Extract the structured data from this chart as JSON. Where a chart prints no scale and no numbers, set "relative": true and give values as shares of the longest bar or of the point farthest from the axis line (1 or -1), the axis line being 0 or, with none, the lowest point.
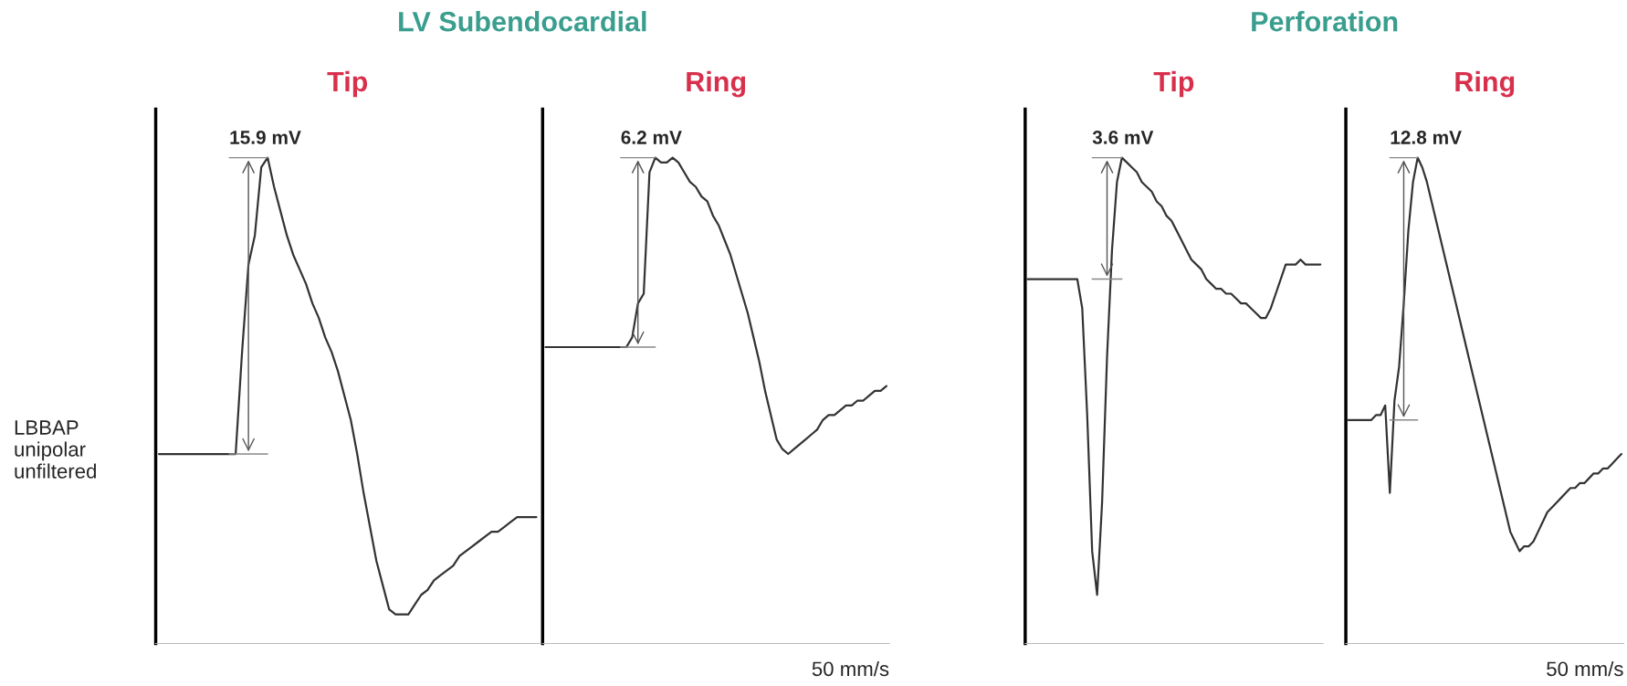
{
  "chart_data": [
    {
      "type": "line",
      "relative": true,
      "title": "LV Subendocardial",
      "subtitle": "Tip",
      "ylabel": "LBBAP unipolar unfiltered",
      "annotations": [
        "15.9 mV"
      ],
      "tick_labels": false,
      "categories": [
        null,
        null,
        null,
        null,
        null,
        null,
        null,
        null,
        null,
        null,
        null,
        null,
        null,
        null,
        null,
        null,
        null,
        null,
        null,
        null,
        null,
        null,
        null,
        null,
        null,
        null,
        null,
        null,
        null,
        null,
        null,
        null,
        null,
        null,
        null,
        null,
        null,
        null,
        null,
        null,
        null,
        null,
        null,
        null,
        null,
        null,
        null,
        null,
        null,
        null,
        null,
        null,
        null,
        null,
        null,
        null,
        null,
        null,
        null,
        null
      ],
      "series": [
        {
          "color": "#333333",
          "values": [
            0.39,
            0.39,
            0.39,
            0.39,
            0.39,
            0.39,
            0.39,
            0.39,
            0.39,
            0.39,
            0.39,
            0.39,
            0.39,
            0.6,
            0.78,
            0.84,
            0.98,
            1.0,
            0.94,
            0.89,
            0.84,
            0.8,
            0.77,
            0.74,
            0.7,
            0.67,
            0.63,
            0.6,
            0.56,
            0.51,
            0.46,
            0.39,
            0.31,
            0.24,
            0.17,
            0.12,
            0.07,
            0.06,
            0.06,
            0.06,
            0.08,
            0.1,
            0.11,
            0.13,
            0.14,
            0.15,
            0.16,
            0.18,
            0.19,
            0.2,
            0.21,
            0.22,
            0.23,
            0.23,
            0.24,
            0.25,
            0.26,
            0.26,
            0.26,
            0.26
          ]
        }
      ]
    },
    {
      "type": "line",
      "relative": true,
      "title": "Ring",
      "xlabel": "50 mm/s",
      "annotations": [
        "6.2 mV"
      ],
      "tick_labels": false,
      "categories": [
        null,
        null,
        null,
        null,
        null,
        null,
        null,
        null,
        null,
        null,
        null,
        null,
        null,
        null,
        null,
        null,
        null,
        null,
        null,
        null,
        null,
        null,
        null,
        null,
        null,
        null,
        null,
        null,
        null,
        null,
        null,
        null,
        null,
        null,
        null,
        null,
        null,
        null,
        null,
        null,
        null,
        null,
        null,
        null,
        null,
        null,
        null,
        null,
        null,
        null,
        null,
        null,
        null,
        null,
        null,
        null,
        null,
        null,
        null,
        null
      ],
      "series": [
        {
          "color": "#333333",
          "values": [
            0.61,
            0.61,
            0.61,
            0.61,
            0.61,
            0.61,
            0.61,
            0.61,
            0.61,
            0.61,
            0.61,
            0.61,
            0.61,
            0.61,
            0.61,
            0.63,
            0.7,
            0.72,
            0.97,
            1.0,
            0.99,
            0.99,
            1.0,
            0.99,
            0.97,
            0.95,
            0.94,
            0.92,
            0.91,
            0.88,
            0.86,
            0.83,
            0.8,
            0.76,
            0.72,
            0.68,
            0.63,
            0.58,
            0.52,
            0.47,
            0.42,
            0.4,
            0.39,
            0.4,
            0.41,
            0.42,
            0.43,
            0.44,
            0.46,
            0.47,
            0.47,
            0.48,
            0.49,
            0.49,
            0.5,
            0.5,
            0.51,
            0.52,
            0.52,
            0.53
          ]
        }
      ]
    },
    {
      "type": "line",
      "relative": true,
      "title": "Perforation",
      "subtitle": "Tip",
      "annotations": [
        "3.6 mV"
      ],
      "tick_labels": false,
      "categories": [
        null,
        null,
        null,
        null,
        null,
        null,
        null,
        null,
        null,
        null,
        null,
        null,
        null,
        null,
        null,
        null,
        null,
        null,
        null,
        null,
        null,
        null,
        null,
        null,
        null,
        null,
        null,
        null,
        null,
        null,
        null,
        null,
        null,
        null,
        null,
        null,
        null,
        null,
        null,
        null,
        null,
        null,
        null,
        null,
        null,
        null,
        null,
        null,
        null,
        null,
        null,
        null,
        null,
        null,
        null,
        null,
        null,
        null,
        null,
        null
      ],
      "series": [
        {
          "color": "#333333",
          "values": [
            0.75,
            0.75,
            0.75,
            0.75,
            0.75,
            0.75,
            0.75,
            0.75,
            0.75,
            0.75,
            0.75,
            0.69,
            0.47,
            0.19,
            0.1,
            0.29,
            0.59,
            0.81,
            0.95,
            1.0,
            0.99,
            0.98,
            0.97,
            0.95,
            0.94,
            0.93,
            0.91,
            0.9,
            0.88,
            0.87,
            0.85,
            0.83,
            0.81,
            0.79,
            0.78,
            0.77,
            0.75,
            0.74,
            0.73,
            0.73,
            0.72,
            0.72,
            0.71,
            0.7,
            0.7,
            0.69,
            0.68,
            0.67,
            0.67,
            0.69,
            0.72,
            0.75,
            0.78,
            0.78,
            0.78,
            0.79,
            0.78,
            0.78,
            0.78,
            0.78
          ]
        }
      ]
    },
    {
      "type": "line",
      "relative": true,
      "title": "Ring",
      "xlabel": "50 mm/s",
      "annotations": [
        "12.8 mV"
      ],
      "tick_labels": false,
      "categories": [
        null,
        null,
        null,
        null,
        null,
        null,
        null,
        null,
        null,
        null,
        null,
        null,
        null,
        null,
        null,
        null,
        null,
        null,
        null,
        null,
        null,
        null,
        null,
        null,
        null,
        null,
        null,
        null,
        null,
        null,
        null,
        null,
        null,
        null,
        null,
        null,
        null,
        null,
        null,
        null,
        null,
        null,
        null,
        null,
        null,
        null,
        null,
        null,
        null,
        null,
        null,
        null,
        null,
        null,
        null,
        null,
        null,
        null,
        null,
        null
      ],
      "series": [
        {
          "color": "#333333",
          "values": [
            0.46,
            0.46,
            0.46,
            0.46,
            0.46,
            0.46,
            0.47,
            0.47,
            0.49,
            0.31,
            0.5,
            0.57,
            0.7,
            0.85,
            0.95,
            1.0,
            0.98,
            0.95,
            0.91,
            0.87,
            0.83,
            0.79,
            0.75,
            0.71,
            0.67,
            0.63,
            0.59,
            0.55,
            0.51,
            0.47,
            0.43,
            0.39,
            0.35,
            0.31,
            0.27,
            0.23,
            0.21,
            0.19,
            0.2,
            0.2,
            0.21,
            0.23,
            0.25,
            0.27,
            0.28,
            0.29,
            0.3,
            0.31,
            0.32,
            0.32,
            0.33,
            0.33,
            0.34,
            0.35,
            0.35,
            0.36,
            0.36,
            0.37,
            0.38,
            0.39
          ]
        }
      ]
    }
  ]
}
